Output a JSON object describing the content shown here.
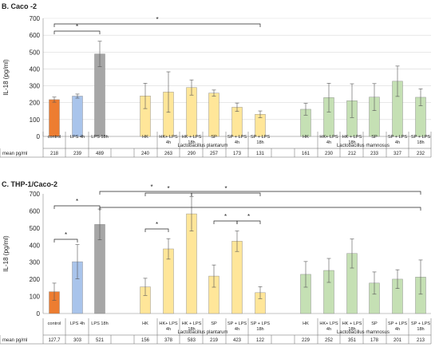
{
  "colors": {
    "control": "#ed7d31",
    "lps": "#a9c4eb",
    "lps18": "#a6a6a6",
    "plantarum": "#ffe699",
    "rhamnosus": "#c5e0b4",
    "edge": "#7f7f7f",
    "grid": "#d9d9d9"
  },
  "chart_data": [
    {
      "type": "bar",
      "title": "B. Caco -2",
      "ylabel": "IL-18 (pg/ml)",
      "ylim": [
        0,
        700
      ],
      "yticks": [
        "0",
        "100",
        "200",
        "300",
        "400",
        "500",
        "600",
        "700"
      ],
      "grid": true,
      "categories": [
        "control",
        "LPS 4h",
        "LPS 18h",
        "HK",
        "HK+ LPS 4h",
        "HK + LPS 18h",
        "SP",
        "SP + LPS 4h",
        "SP + LPS 18h",
        "HK",
        "HK+ LPS 4h",
        "HK + LPS 18h",
        "SP",
        "SP + LPS 4h",
        "SP + LPS 18h"
      ],
      "values": [
        218,
        239,
        489,
        240,
        263,
        290,
        257,
        173,
        131,
        161,
        230,
        212,
        233,
        327,
        232
      ],
      "errors": [
        15,
        12,
        75,
        75,
        120,
        45,
        18,
        25,
        20,
        35,
        85,
        100,
        80,
        90,
        50
      ],
      "group_labels": [
        "Lactobacillus plantarum",
        "Lactobacillus rhamnosus"
      ],
      "row_label": "mean pg/ml",
      "row_values": [
        "218",
        "239",
        "489",
        "240",
        "263",
        "290",
        "257",
        "173",
        "131",
        "161",
        "230",
        "212",
        "233",
        "327",
        "232"
      ],
      "significance": [
        "*",
        "*"
      ]
    },
    {
      "type": "bar",
      "title": "C. THP-1/Caco-2",
      "ylabel": "IL-18 (pg/ml)",
      "ylim": [
        0,
        700
      ],
      "yticks": [
        "0",
        "100",
        "200",
        "300",
        "400",
        "500",
        "600",
        "700"
      ],
      "grid": false,
      "categories": [
        "control",
        "LPS 4h",
        "LPS 18h",
        "HK",
        "HK+ LPS 4h",
        "HK + LPS 18h",
        "SP",
        "SP + LPS 4h",
        "SP + LPS 18h",
        "HK",
        "HK+ LPS 4h",
        "HK + LPS 18h",
        "SP",
        "SP + LPS 4h",
        "SP + LPS 18h"
      ],
      "values": [
        127.7,
        303,
        521,
        156,
        378,
        583,
        219,
        423,
        122,
        229,
        252,
        351,
        178,
        201,
        213
      ],
      "errors": [
        50,
        100,
        90,
        50,
        60,
        100,
        65,
        60,
        35,
        75,
        70,
        85,
        65,
        55,
        100
      ],
      "group_labels": [
        "Lactobacillus plantarum",
        "Lactobacillus rhamnosus"
      ],
      "row_label": "mean pg/ml",
      "row_values": [
        "127,7",
        "303",
        "521",
        "156",
        "378",
        "583",
        "219",
        "423",
        "122",
        "229",
        "252",
        "351",
        "178",
        "201",
        "213"
      ],
      "significance": [
        "*",
        "*",
        "*",
        "*",
        "*",
        "*",
        "*",
        "*"
      ]
    }
  ]
}
